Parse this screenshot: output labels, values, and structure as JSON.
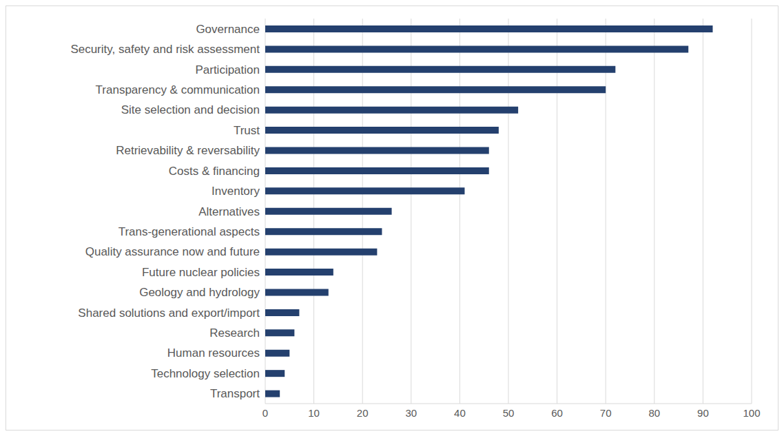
{
  "chart_data": {
    "type": "bar",
    "orientation": "horizontal",
    "categories": [
      "Governance",
      "Security, safety and risk assessment",
      "Participation",
      "Transparency & communication",
      "Site selection and decision",
      "Trust",
      "Retrievability & reversability",
      "Costs & financing",
      "Inventory",
      "Alternatives",
      "Trans-generational aspects",
      "Quality assurance now and future",
      "Future nuclear policies",
      "Geology and hydrology",
      "Shared solutions and export/import",
      "Research",
      "Human resources",
      "Technology selection",
      "Transport"
    ],
    "values": [
      92,
      87,
      72,
      70,
      52,
      48,
      46,
      46,
      41,
      26,
      24,
      23,
      14,
      13,
      7,
      6,
      5,
      4,
      3
    ],
    "color": "#24406e",
    "xlim": [
      0,
      100
    ],
    "xticks": [
      0,
      10,
      20,
      30,
      40,
      50,
      60,
      70,
      80,
      90,
      100
    ],
    "grid": true
  }
}
